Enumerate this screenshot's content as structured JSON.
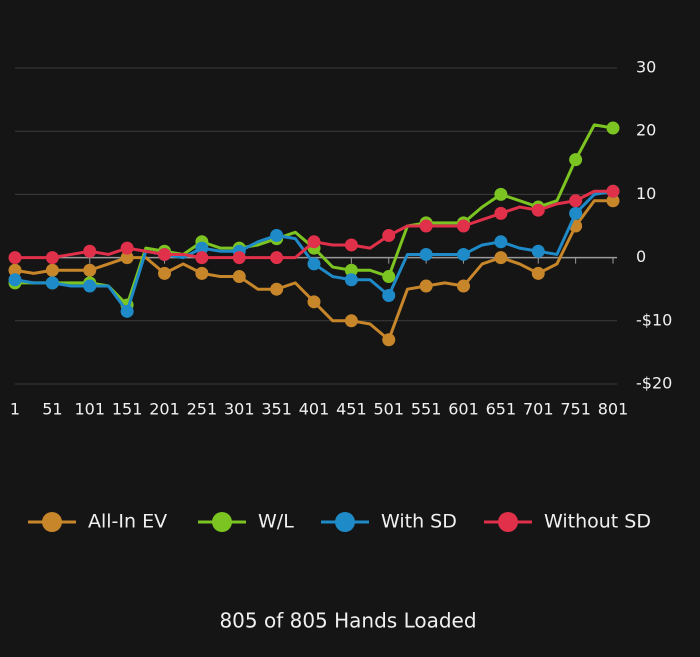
{
  "chart_data": {
    "type": "line",
    "x": [
      1,
      26,
      51,
      76,
      101,
      126,
      151,
      176,
      201,
      226,
      251,
      276,
      301,
      326,
      351,
      376,
      401,
      426,
      451,
      476,
      501,
      526,
      551,
      576,
      601,
      626,
      651,
      676,
      701,
      726,
      751,
      776,
      801
    ],
    "series": [
      {
        "name": "All-In EV",
        "color": "#c8862a",
        "values": [
          -2,
          -2.5,
          -2,
          -2,
          -2,
          -1,
          0,
          0,
          -2.5,
          -1,
          -2.5,
          -3,
          -3,
          -5,
          -5,
          -4,
          -7,
          -10,
          -10,
          -10.5,
          -13,
          -5,
          -4.5,
          -4,
          -4.5,
          -1,
          0,
          -1,
          -2.5,
          -1,
          5,
          9,
          9
        ]
      },
      {
        "name": "W/L",
        "color": "#7cc421",
        "values": [
          -4,
          -4,
          -4,
          -4,
          -4,
          -4.5,
          -7.5,
          1.5,
          1,
          0.5,
          2.5,
          1.5,
          1.5,
          2,
          3,
          4,
          1.5,
          -1.5,
          -2,
          -2,
          -3,
          5,
          5.5,
          5.5,
          5.5,
          8,
          10,
          9,
          8,
          9,
          15.5,
          21,
          20.5
        ]
      },
      {
        "name": "With SD",
        "color": "#1f8ac8",
        "values": [
          -3.5,
          -4,
          -4,
          -4.5,
          -4.5,
          -4.5,
          -8.5,
          1,
          0.5,
          0,
          1.5,
          1,
          1,
          2.5,
          3.5,
          3,
          -1,
          -3,
          -3.5,
          -3.5,
          -6,
          0.5,
          0.5,
          0.5,
          0.5,
          2,
          2.5,
          1.5,
          1,
          0.5,
          7,
          10,
          10.5
        ]
      },
      {
        "name": "Without SD",
        "color": "#e0304a",
        "values": [
          0,
          0,
          0,
          0.5,
          1,
          0.5,
          1.5,
          1,
          0.5,
          0.5,
          0,
          0,
          0,
          0,
          0,
          0,
          2.5,
          2,
          2,
          1.5,
          3.5,
          5,
          5,
          5,
          5,
          6,
          7,
          8,
          7.5,
          8.5,
          9,
          10.5,
          10.5
        ]
      }
    ],
    "xlim": [
      1,
      801
    ],
    "xticks": [
      1,
      51,
      101,
      151,
      201,
      251,
      301,
      351,
      401,
      451,
      501,
      551,
      601,
      651,
      701,
      751,
      801
    ],
    "ylim": [
      -20,
      30
    ],
    "yticks": [
      {
        "value": -20,
        "label": "-$20"
      },
      {
        "value": -10,
        "label": "-$10"
      },
      0,
      10,
      20,
      30
    ],
    "grid": true,
    "legend": "bottom"
  },
  "footer": "805 of 805 Hands Loaded"
}
